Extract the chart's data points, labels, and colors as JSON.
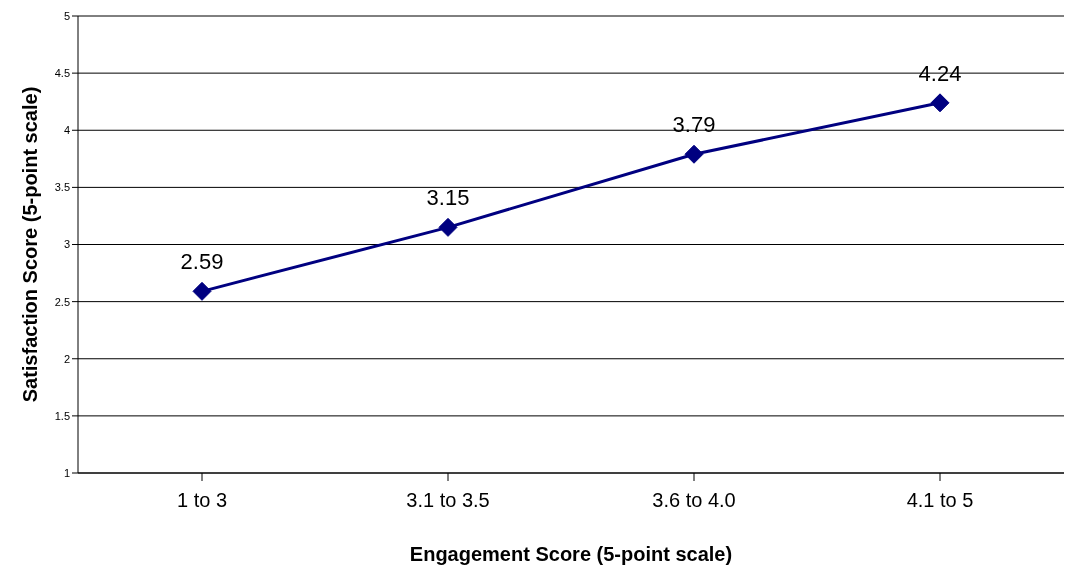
{
  "chart_data": {
    "type": "line",
    "xlabel": "Engagement Score (5-point scale)",
    "ylabel": "Satisfaction Score (5-point scale)",
    "categories": [
      "1 to 3",
      "3.1 to 3.5",
      "3.6 to 4.0",
      "4.1 to 5"
    ],
    "series": [
      {
        "color": "#000080",
        "values": [
          2.59,
          3.15,
          3.79,
          4.24
        ]
      }
    ],
    "ylim": [
      1,
      5
    ],
    "yticks": [
      1,
      1.5,
      2,
      2.5,
      3,
      3.5,
      4,
      4.5,
      5
    ],
    "grid": "y",
    "marker": "diamond",
    "line_style": "solid",
    "data_labels": true
  }
}
